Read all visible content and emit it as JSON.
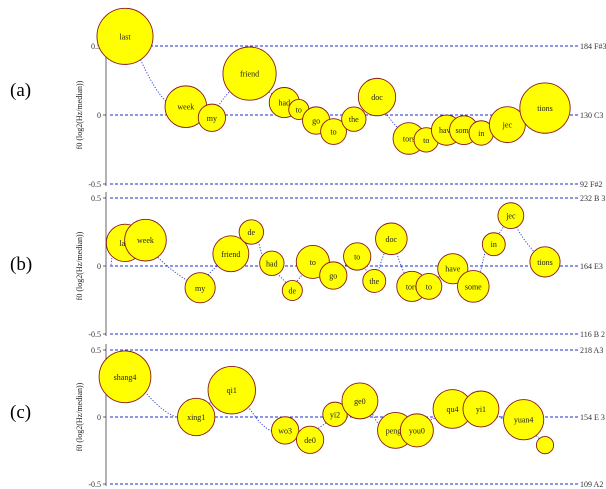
{
  "chart_data": [
    {
      "type": "scatter",
      "panel_label": "(a)",
      "ylabel": "f0 (log2(Hz/median))",
      "ylim": [
        -0.5,
        0.5
      ],
      "yticks": [
        "0.5",
        "0",
        "-0.5"
      ],
      "reference_lines": [
        {
          "y": 0.5,
          "note": "184 F#3"
        },
        {
          "y": 0,
          "note": "130 C3"
        },
        {
          "y": -0.5,
          "note": "92 F#2"
        }
      ],
      "syllables": [
        {
          "label": "last",
          "t": 0.0,
          "f0": 0.57,
          "size": 3.2
        },
        {
          "label": "week",
          "t": 0.21,
          "f0": 0.06,
          "size": 2.2
        },
        {
          "label": "my",
          "t": 0.3,
          "f0": -0.02,
          "size": 1.2
        },
        {
          "label": "friend",
          "t": 0.43,
          "f0": 0.3,
          "size": 3.0
        },
        {
          "label": "had",
          "t": 0.55,
          "f0": 0.09,
          "size": 1.4
        },
        {
          "label": "to",
          "t": 0.6,
          "f0": 0.04,
          "size": 0.7
        },
        {
          "label": "go",
          "t": 0.66,
          "f0": -0.04,
          "size": 1.2
        },
        {
          "label": "to",
          "t": 0.72,
          "f0": -0.12,
          "size": 1.1
        },
        {
          "label": "the",
          "t": 0.79,
          "f0": -0.03,
          "size": 1.0
        },
        {
          "label": "doc",
          "t": 0.87,
          "f0": 0.13,
          "size": 1.9
        },
        {
          "label": "tors",
          "t": 0.98,
          "f0": -0.17,
          "size": 1.5
        },
        {
          "label": "to",
          "t": 1.04,
          "f0": -0.18,
          "size": 1.0
        },
        {
          "label": "have",
          "t": 1.11,
          "f0": -0.11,
          "size": 1.4
        },
        {
          "label": "some",
          "t": 1.17,
          "f0": -0.11,
          "size": 1.3
        },
        {
          "label": "in",
          "t": 1.23,
          "f0": -0.13,
          "size": 1.0
        },
        {
          "label": "jec",
          "t": 1.32,
          "f0": -0.07,
          "size": 1.8
        },
        {
          "label": "tions",
          "t": 1.45,
          "f0": 0.05,
          "size": 2.8
        }
      ]
    },
    {
      "type": "scatter",
      "panel_label": "(b)",
      "ylabel": "f0 (log2(Hz/median))",
      "ylim": [
        -0.5,
        0.5
      ],
      "yticks": [
        "0.5",
        "0",
        "-0.5"
      ],
      "reference_lines": [
        {
          "y": 0.5,
          "note": "232 B 3"
        },
        {
          "y": 0,
          "note": "164 E3"
        },
        {
          "y": -0.5,
          "note": "116 B 2"
        }
      ],
      "syllables": [
        {
          "label": "last",
          "t": 0.02,
          "f0": 0.17,
          "size": 1.9
        },
        {
          "label": "week",
          "t": 0.08,
          "f0": 0.19,
          "size": 2.2
        },
        {
          "label": "my",
          "t": 0.24,
          "f0": -0.16,
          "size": 1.4
        },
        {
          "label": "friend",
          "t": 0.33,
          "f0": 0.09,
          "size": 1.8
        },
        {
          "label": "de",
          "t": 0.39,
          "f0": 0.25,
          "size": 1.0
        },
        {
          "label": "had",
          "t": 0.45,
          "f0": 0.02,
          "size": 1.0
        },
        {
          "label": "de",
          "t": 0.51,
          "f0": -0.18,
          "size": 0.7
        },
        {
          "label": "to",
          "t": 0.57,
          "f0": 0.03,
          "size": 1.6
        },
        {
          "label": "go",
          "t": 0.63,
          "f0": -0.07,
          "size": 1.2
        },
        {
          "label": "to",
          "t": 0.7,
          "f0": 0.07,
          "size": 1.2
        },
        {
          "label": "the",
          "t": 0.75,
          "f0": -0.11,
          "size": 0.9
        },
        {
          "label": "doc",
          "t": 0.8,
          "f0": 0.2,
          "size": 1.5
        },
        {
          "label": "tors",
          "t": 0.86,
          "f0": -0.15,
          "size": 1.4
        },
        {
          "label": "to",
          "t": 0.91,
          "f0": -0.15,
          "size": 1.1
        },
        {
          "label": "have",
          "t": 0.98,
          "f0": -0.02,
          "size": 1.4
        },
        {
          "label": "some",
          "t": 1.04,
          "f0": -0.15,
          "size": 1.5
        },
        {
          "label": "in",
          "t": 1.1,
          "f0": 0.16,
          "size": 0.9
        },
        {
          "label": "jec",
          "t": 1.15,
          "f0": 0.37,
          "size": 1.1
        },
        {
          "label": "tions",
          "t": 1.25,
          "f0": 0.03,
          "size": 1.4
        }
      ]
    },
    {
      "type": "scatter",
      "panel_label": "(c)",
      "ylabel": "f0 (log2(Hz/median))",
      "ylim": [
        -0.5,
        0.5
      ],
      "yticks": [
        "0.5",
        "0",
        "-0.5"
      ],
      "reference_lines": [
        {
          "y": 0.5,
          "note": "218 A3"
        },
        {
          "y": 0,
          "note": "154 E 3"
        },
        {
          "y": -0.5,
          "note": "109 A2"
        }
      ],
      "syllables": [
        {
          "label": "shang4",
          "t": 0.0,
          "f0": 0.3,
          "size": 2.9
        },
        {
          "label": "xing1",
          "t": 0.2,
          "f0": 0.0,
          "size": 1.9
        },
        {
          "label": "qi1",
          "t": 0.3,
          "f0": 0.2,
          "size": 2.6
        },
        {
          "label": "wo3",
          "t": 0.45,
          "f0": -0.1,
          "size": 1.2
        },
        {
          "label": "de0",
          "t": 0.52,
          "f0": -0.17,
          "size": 1.2
        },
        {
          "label": "yi2",
          "t": 0.59,
          "f0": 0.02,
          "size": 1.0
        },
        {
          "label": "ge0",
          "t": 0.66,
          "f0": 0.12,
          "size": 1.8
        },
        {
          "label": "peng2",
          "t": 0.76,
          "f0": -0.1,
          "size": 1.8
        },
        {
          "label": "you0",
          "t": 0.82,
          "f0": -0.1,
          "size": 1.6
        },
        {
          "label": "qu4",
          "t": 0.92,
          "f0": 0.06,
          "size": 2.0
        },
        {
          "label": "yi1",
          "t": 1.0,
          "f0": 0.06,
          "size": 1.8
        },
        {
          "label": "yuan4",
          "t": 1.12,
          "f0": -0.02,
          "size": 2.1
        },
        {
          "label": "",
          "t": 1.18,
          "f0": -0.21,
          "size": 0.5
        }
      ]
    }
  ]
}
